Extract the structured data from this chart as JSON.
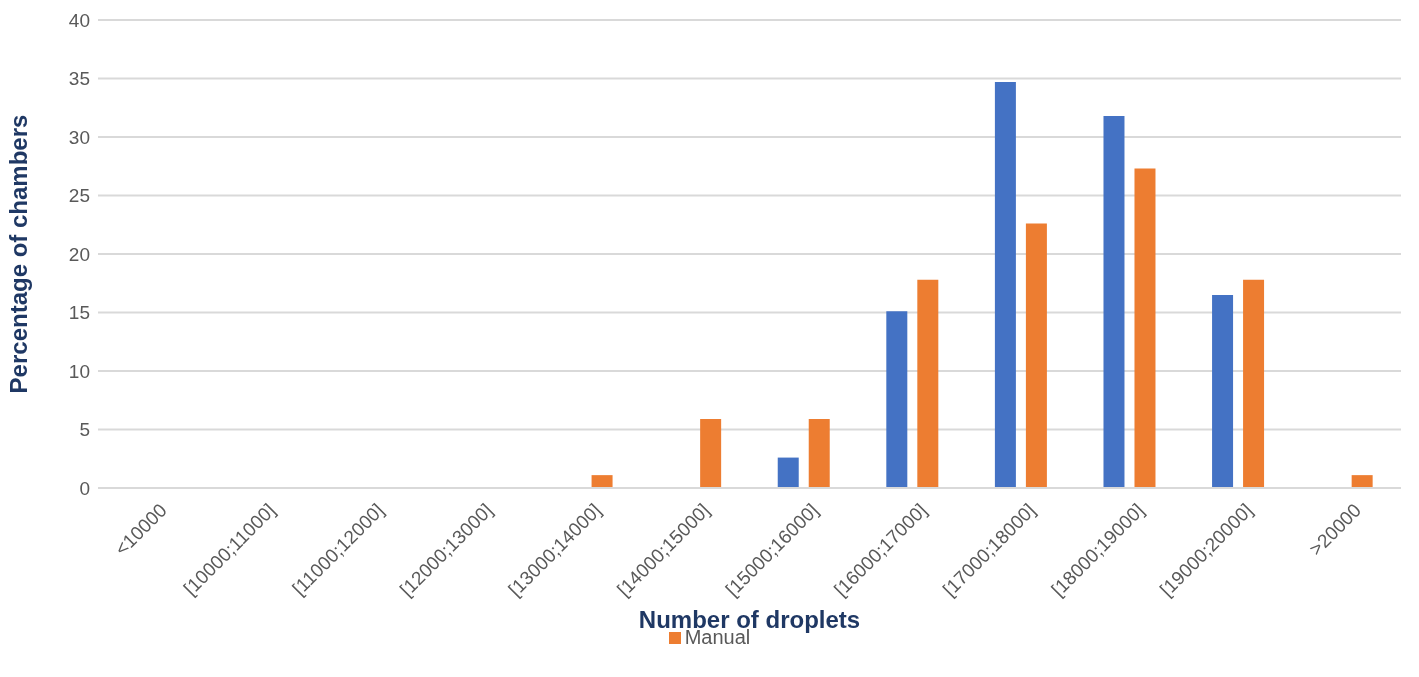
{
  "chart_data": {
    "type": "bar",
    "categories": [
      "<10000",
      "[10000;11000]",
      "[11000;12000]",
      "[12000;13000]",
      "[13000;14000]",
      "[14000;15000]",
      "[15000;16000]",
      "[16000;17000]",
      "[17000;18000]",
      "[18000;19000]",
      "[19000;20000]",
      ">20000"
    ],
    "series": [
      {
        "color": "#4472c4",
        "values": [
          0,
          0,
          0,
          0,
          0,
          0,
          2.6,
          15.1,
          34.7,
          31.8,
          16.5,
          0
        ]
      },
      {
        "name": "Manual",
        "color": "#ed7d31",
        "values": [
          0,
          0,
          0,
          0,
          1.1,
          5.9,
          5.9,
          17.8,
          22.6,
          27.3,
          17.8,
          1.1
        ]
      }
    ],
    "xlabel": "Number of droplets",
    "ylabel": "Percentage of chambers",
    "ylim": [
      0,
      40
    ],
    "yticks": [
      0,
      5,
      10,
      15,
      20,
      25,
      30,
      35,
      40
    ],
    "grid": "y",
    "legend": "bottom"
  }
}
